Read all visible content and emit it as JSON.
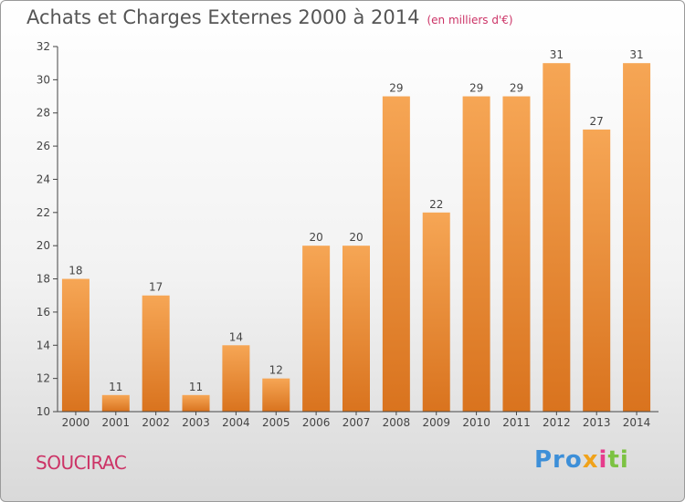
{
  "chart_data": {
    "type": "bar",
    "title": "Achats et Charges Externes 2000 à 2014",
    "subtitle": "(en milliers d'€)",
    "categories": [
      "2000",
      "2001",
      "2002",
      "2003",
      "2004",
      "2005",
      "2006",
      "2007",
      "2008",
      "2009",
      "2010",
      "2011",
      "2012",
      "2013",
      "2014"
    ],
    "values": [
      18,
      11,
      17,
      11,
      14,
      12,
      20,
      20,
      29,
      22,
      29,
      29,
      31,
      27,
      31
    ],
    "ylim": [
      10,
      32
    ],
    "yticks": [
      10,
      12,
      14,
      16,
      18,
      20,
      22,
      24,
      26,
      28,
      30,
      32
    ],
    "grid": false,
    "bar_color_top": "#f6a655",
    "bar_color_bottom": "#d9731e"
  },
  "footer": {
    "town": "SOUCIRAC",
    "logo": {
      "p1": "Pro",
      "p2": "x",
      "p3": "i",
      "p4": "ti"
    }
  }
}
